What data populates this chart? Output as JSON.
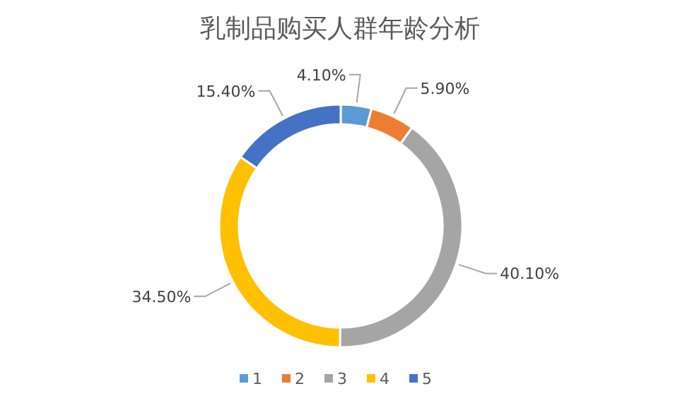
{
  "chart_data": {
    "type": "donut",
    "title": "乳制品购买人群年龄分析",
    "categories": [
      "1",
      "2",
      "3",
      "4",
      "5"
    ],
    "values": [
      4.1,
      5.9,
      40.1,
      34.5,
      15.4
    ],
    "value_labels": [
      "4.10%",
      "5.90%",
      "40.10%",
      "34.50%",
      "15.40%"
    ],
    "colors": [
      "#5b9bd5",
      "#ed7d31",
      "#a5a5a5",
      "#ffc000",
      "#4472c4"
    ],
    "legend": "bottom"
  }
}
